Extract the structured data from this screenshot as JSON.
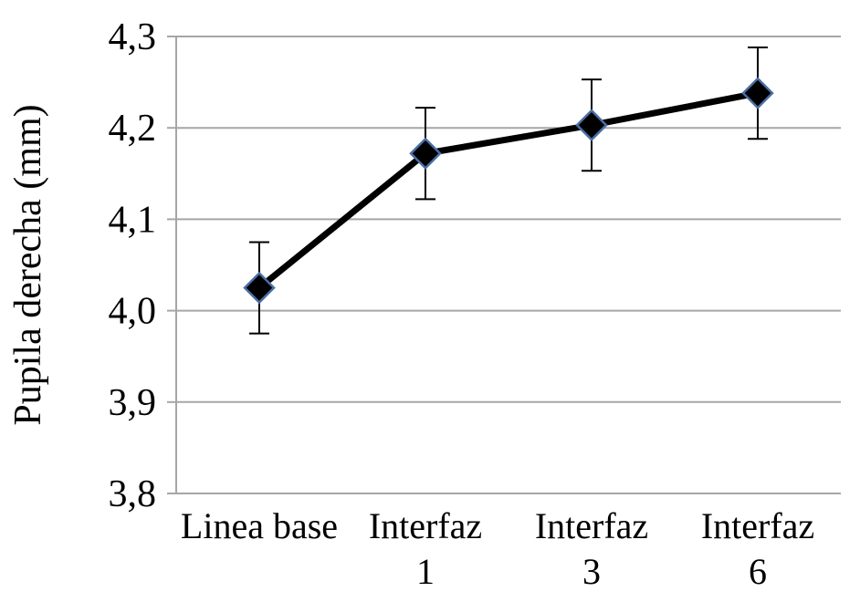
{
  "chart_data": {
    "type": "line",
    "categories": [
      [
        "Linea base"
      ],
      [
        "Interfaz",
        "1"
      ],
      [
        "Interfaz",
        "3"
      ],
      [
        "Interfaz",
        "6"
      ]
    ],
    "values": [
      4.025,
      4.172,
      4.203,
      4.238
    ],
    "error": [
      0.05,
      0.05,
      0.05,
      0.05
    ],
    "ylabel": "Pupila derecha (mm)",
    "ylim": [
      3.8,
      4.3
    ],
    "yticks": [
      "3,8",
      "3,9",
      "4,0",
      "4,1",
      "4,2",
      "4,3"
    ],
    "grid": true,
    "marker": "diamond",
    "line_color": "#000000",
    "marker_fill": "#000000",
    "marker_edge": "#4a6fa5",
    "grid_color": "#a6a6a6"
  }
}
